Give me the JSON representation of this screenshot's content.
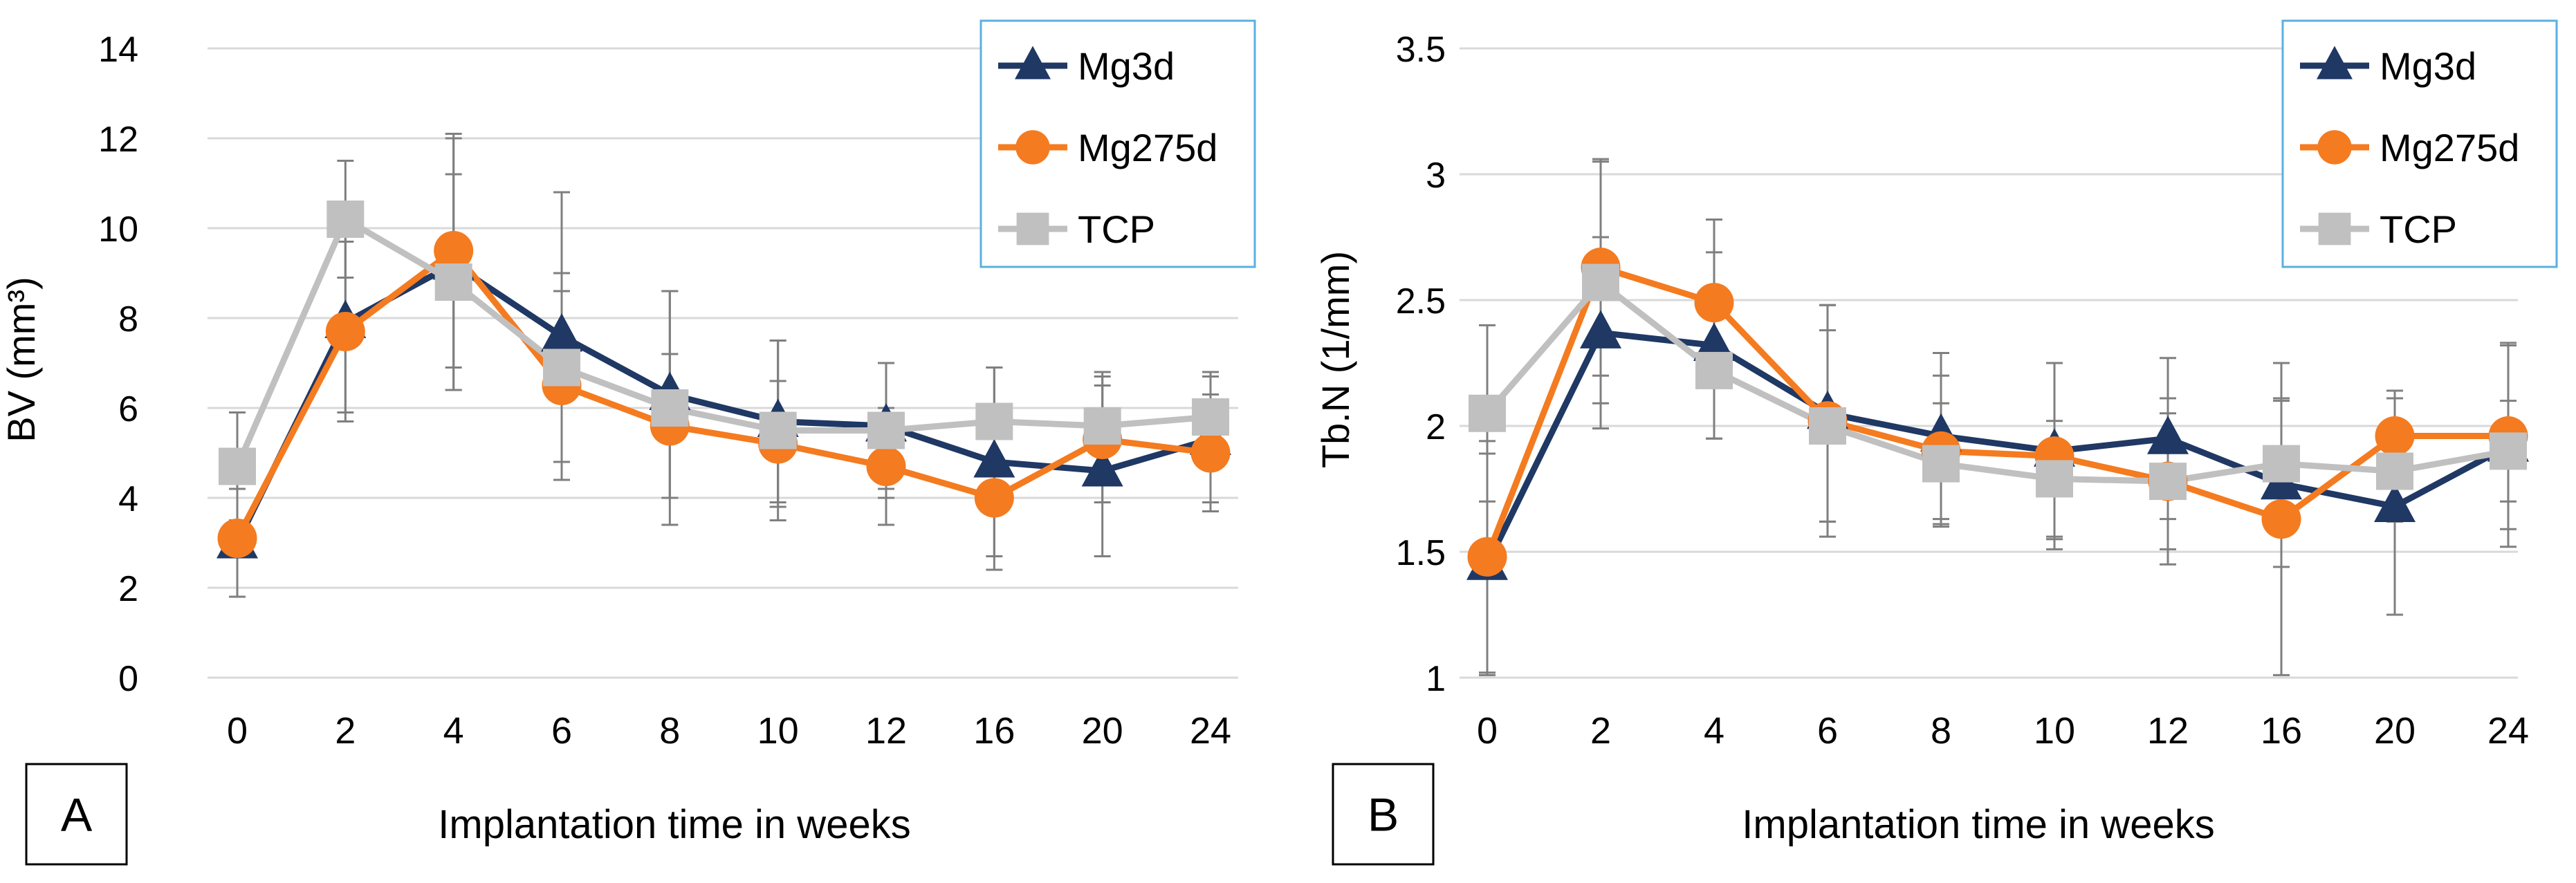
{
  "figure": {
    "panels_count": 2
  },
  "chart_data": [
    {
      "type": "line",
      "panel_label": "A",
      "xlabel": "Implantation time in weeks",
      "ylabel": "BV (mm³)",
      "categories": [
        "0",
        "2",
        "4",
        "6",
        "8",
        "10",
        "12",
        "16",
        "20",
        "24"
      ],
      "ylim": [
        0,
        14
      ],
      "yticks": [
        0,
        2,
        4,
        6,
        8,
        10,
        12,
        14
      ],
      "ytick_labels": [
        "0",
        "2",
        "4",
        "6",
        "8",
        "10",
        "12",
        "14"
      ],
      "grid": true,
      "legend_position": "top-right",
      "series": [
        {
          "name": "Mg3d",
          "color": "#1f3864",
          "marker": "triangle",
          "values": [
            3.0,
            7.9,
            9.2,
            7.6,
            6.3,
            5.7,
            5.6,
            4.8,
            4.6,
            5.3
          ],
          "errors": [
            1.2,
            2.0,
            2.8,
            3.2,
            2.3,
            1.8,
            1.4,
            2.1,
            1.9,
            1.4
          ]
        },
        {
          "name": "Mg275d",
          "color": "#f47b20",
          "marker": "circle",
          "values": [
            3.1,
            7.7,
            9.5,
            6.5,
            5.6,
            5.2,
            4.7,
            4.0,
            5.3,
            5.0
          ],
          "errors": [
            1.3,
            2.0,
            2.6,
            2.1,
            1.6,
            1.4,
            1.3,
            1.6,
            1.4,
            1.3
          ]
        },
        {
          "name": "TCP",
          "color": "#c0c0c0",
          "marker": "square",
          "values": [
            4.7,
            10.2,
            8.8,
            6.9,
            6.0,
            5.5,
            5.5,
            5.7,
            5.6,
            5.8
          ],
          "errors": [
            1.2,
            1.3,
            2.4,
            2.1,
            2.6,
            2.0,
            1.5,
            1.2,
            1.2,
            1.0
          ]
        }
      ]
    },
    {
      "type": "line",
      "panel_label": "B",
      "xlabel": "Implantation time in weeks",
      "ylabel": "Tb.N (1/mm)",
      "categories": [
        "0",
        "2",
        "4",
        "6",
        "8",
        "10",
        "12",
        "16",
        "20",
        "24"
      ],
      "ylim": [
        1,
        3.5
      ],
      "yticks": [
        1,
        1.5,
        2,
        2.5,
        3,
        3.5
      ],
      "ytick_labels": [
        "1",
        "1.5",
        "2",
        "2.5",
        "3",
        "3.5"
      ],
      "grid": true,
      "legend_position": "top-right",
      "series": [
        {
          "name": "Mg3d",
          "color": "#1f3864",
          "marker": "triangle",
          "values": [
            1.45,
            2.37,
            2.32,
            2.05,
            1.96,
            1.9,
            1.95,
            1.77,
            1.68,
            1.92
          ],
          "errors": [
            0.44,
            0.38,
            0.37,
            0.43,
            0.33,
            0.35,
            0.32,
            0.33,
            0.43,
            0.4
          ]
        },
        {
          "name": "Mg275d",
          "color": "#f47b20",
          "marker": "circle",
          "values": [
            1.48,
            2.63,
            2.49,
            2.02,
            1.9,
            1.88,
            1.78,
            1.63,
            1.96,
            1.96
          ],
          "errors": [
            0.46,
            0.43,
            0.33,
            0.46,
            0.3,
            0.37,
            0.33,
            0.62,
            0.18,
            0.37
          ]
        },
        {
          "name": "TCP",
          "color": "#c0c0c0",
          "marker": "square",
          "values": [
            2.05,
            2.57,
            2.22,
            2.0,
            1.85,
            1.79,
            1.78,
            1.85,
            1.82,
            1.9
          ],
          "errors": [
            0.35,
            0.48,
            0.27,
            0.38,
            0.24,
            0.23,
            0.27,
            0.26,
            0.2,
            0.2
          ]
        }
      ]
    }
  ]
}
